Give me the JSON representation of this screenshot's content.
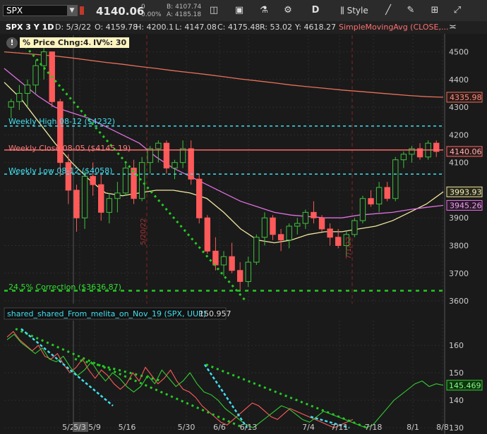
{
  "toolbar": {
    "symbol": "SPX",
    "price": "4140.06",
    "net_change": "0",
    "pct_change": "0.00%",
    "bid": "B: 4107.74",
    "ask": "A: 4185.18",
    "period_btn": "D",
    "style_btn": "Style"
  },
  "info_bar": {
    "timeframe": "SPX 3 Y 1D",
    "date": "D: 5/3/22",
    "open": "O: 4159.78",
    "high": "H: 4200.1",
    "low": "L: 4147.08",
    "close": "C: 4175.48",
    "range": "R: 53.02",
    "ytd": "Y: 4618.27",
    "study": "SimpleMovingAvg (CLOSE,..."
  },
  "badges": {
    "pct_price": "% Price Chng:4.37",
    "iv": "IV%: 30"
  },
  "annotations": {
    "weekly_high": "Weekly High 08-12 ($4232)",
    "weekly_close": "Weekly Close 08-05 ($4145.19)",
    "weekly_low": "Weekly Low 08-12 ($4058)",
    "correction": "24.5% Correction ($3636.87)",
    "vline1": "5/20/22",
    "vline2": "7/1/22"
  },
  "price_labels": {
    "ma_red": "4335.98",
    "last": "4140.06",
    "ma_yellow": "3993.93",
    "ma_magenta": "3945.26"
  },
  "lower_panel": {
    "title": "shared_shared_From_melita_on_Nov_19 (SPX, UUP)",
    "value": "150.957",
    "last_label": "145.469"
  },
  "colors": {
    "up": "#3fbf3f",
    "down": "#ff5a5a",
    "ma_red": "#e8705a",
    "ma_yellow": "#f0e6a0",
    "ma_magenta": "#e070e0",
    "level_cyan": "#40e0f0",
    "trend_green": "#22cc22"
  },
  "chart_data": [
    {
      "type": "candlestick",
      "x_ticks": [
        "5/2",
        "5/3",
        "5/9",
        "5/16",
        "5/30",
        "6/6",
        "6/13",
        "7/4",
        "7/11",
        "7/18",
        "8/1",
        "8/8"
      ],
      "y_ticks": [
        3600,
        3700,
        3800,
        3900,
        4000,
        4100,
        4200,
        4300,
        4400,
        4500
      ],
      "ylim": [
        3590,
        4560
      ],
      "candles": [
        [
          4300,
          4330,
          4260,
          4320
        ],
        [
          4320,
          4380,
          4290,
          4350
        ],
        [
          4350,
          4400,
          4300,
          4380
        ],
        [
          4380,
          4470,
          4350,
          4450
        ],
        [
          4450,
          4520,
          4400,
          4500
        ],
        [
          4500,
          4500,
          4300,
          4320
        ],
        [
          4320,
          4330,
          4050,
          4100
        ],
        [
          4100,
          4130,
          3950,
          4000
        ],
        [
          4000,
          4020,
          3850,
          3900
        ],
        [
          3900,
          4070,
          3860,
          4050
        ],
        [
          4050,
          4100,
          3980,
          4020
        ],
        [
          4020,
          4060,
          3890,
          3920
        ],
        [
          3920,
          3990,
          3880,
          3970
        ],
        [
          3970,
          4030,
          3920,
          3990
        ],
        [
          3990,
          4100,
          3980,
          4080
        ],
        [
          4080,
          4110,
          3950,
          3970
        ],
        [
          3970,
          4120,
          3960,
          4100
        ],
        [
          4100,
          4160,
          4060,
          4150
        ],
        [
          4150,
          4180,
          4100,
          4170
        ],
        [
          4170,
          4180,
          4060,
          4080
        ],
        [
          4080,
          4110,
          4040,
          4100
        ],
        [
          4100,
          4180,
          4080,
          4150
        ],
        [
          4150,
          4180,
          4020,
          4040
        ],
        [
          4040,
          4060,
          3880,
          3900
        ],
        [
          3900,
          3910,
          3770,
          3780
        ],
        [
          3780,
          3830,
          3710,
          3730
        ],
        [
          3730,
          3780,
          3690,
          3760
        ],
        [
          3760,
          3810,
          3700,
          3710
        ],
        [
          3710,
          3740,
          3640,
          3670
        ],
        [
          3670,
          3760,
          3650,
          3740
        ],
        [
          3740,
          3840,
          3730,
          3830
        ],
        [
          3830,
          3920,
          3800,
          3900
        ],
        [
          3900,
          3910,
          3820,
          3840
        ],
        [
          3840,
          3860,
          3780,
          3820
        ],
        [
          3820,
          3880,
          3790,
          3870
        ],
        [
          3870,
          3900,
          3840,
          3880
        ],
        [
          3880,
          3930,
          3860,
          3920
        ],
        [
          3920,
          3960,
          3880,
          3900
        ],
        [
          3900,
          3910,
          3850,
          3860
        ],
        [
          3860,
          3880,
          3800,
          3830
        ],
        [
          3830,
          3860,
          3790,
          3800
        ],
        [
          3800,
          3850,
          3760,
          3840
        ],
        [
          3840,
          3900,
          3830,
          3890
        ],
        [
          3890,
          3980,
          3880,
          3970
        ],
        [
          3970,
          4000,
          3940,
          3950
        ],
        [
          3950,
          4030,
          3920,
          4010
        ],
        [
          4010,
          4030,
          3960,
          3970
        ],
        [
          3970,
          4120,
          3960,
          4110
        ],
        [
          4110,
          4140,
          4080,
          4130
        ],
        [
          4130,
          4160,
          4100,
          4150
        ],
        [
          4150,
          4170,
          4110,
          4120
        ],
        [
          4120,
          4180,
          4110,
          4170
        ],
        [
          4170,
          4180,
          4120,
          4140
        ]
      ],
      "series": [
        {
          "name": "SimpleMovingAvg (CLOSE,...",
          "color": "#e8705a",
          "values": [
            4500,
            4495,
            4490,
            4485,
            4478,
            4470,
            4462,
            4455,
            4447,
            4440,
            4432,
            4425,
            4418,
            4410,
            4402,
            4395,
            4388,
            4380,
            4374,
            4368,
            4362,
            4357,
            4352,
            4347,
            4342,
            4338,
            4335.98
          ]
        },
        {
          "name": "",
          "color": "#f0e6a0",
          "values": [
            4390,
            4330,
            4250,
            4170,
            4100,
            4040,
            3990,
            3980,
            3990,
            4000,
            4000,
            3990,
            3970,
            3920,
            3860,
            3820,
            3810,
            3820,
            3840,
            3850,
            3850,
            3860,
            3870,
            3890,
            3920,
            3950,
            3993.93
          ]
        },
        {
          "name": "",
          "color": "#e070e0",
          "values": [
            4440,
            4390,
            4340,
            4300,
            4280,
            4260,
            4230,
            4200,
            4170,
            4120,
            4080,
            4050,
            4020,
            3990,
            3960,
            3940,
            3920,
            3910,
            3905,
            3900,
            3900,
            3910,
            3915,
            3920,
            3930,
            3938,
            3945.26
          ]
        }
      ],
      "levels": [
        4232,
        4145.19,
        4058,
        3636.87
      ]
    },
    {
      "type": "line",
      "title": "shared_shared_From_melita_on_Nov_19 (SPX, UUP)",
      "y_ticks": [
        130,
        140,
        150,
        160
      ],
      "ylim": [
        129,
        169
      ],
      "series": [
        {
          "name": "shared_shared_From_melita_on_Nov_19 (SPX, UUP)",
          "color": "#ff5a5a",
          "values": [
            163,
            165,
            162,
            160,
            158,
            160,
            156,
            155,
            157,
            153,
            150,
            152,
            155,
            151,
            148,
            151,
            149,
            146,
            144,
            146,
            150,
            147,
            152,
            149,
            146,
            148,
            151,
            147,
            144,
            143,
            141,
            138,
            136,
            134,
            132,
            131,
            133,
            135,
            137,
            139,
            138,
            136,
            134,
            133,
            135,
            137,
            136,
            135,
            134,
            133,
            132,
            131,
            130,
            131,
            132,
            133
          ]
        },
        {
          "name": "",
          "color": "#33cc33",
          "values": [
            162,
            164,
            161,
            159,
            157,
            159,
            155,
            154,
            156,
            152,
            149,
            151,
            154,
            150,
            147,
            150,
            148,
            145,
            143,
            145,
            149,
            146,
            151,
            148,
            145,
            147,
            150,
            146,
            143,
            142,
            140,
            137,
            135,
            133,
            131,
            130,
            132,
            134,
            136,
            138,
            137,
            135,
            133,
            132,
            134,
            136,
            135,
            134,
            133,
            132,
            131,
            130,
            131,
            134,
            137,
            140,
            142,
            144,
            146,
            147,
            145,
            146,
            145.469
          ]
        }
      ]
    }
  ]
}
